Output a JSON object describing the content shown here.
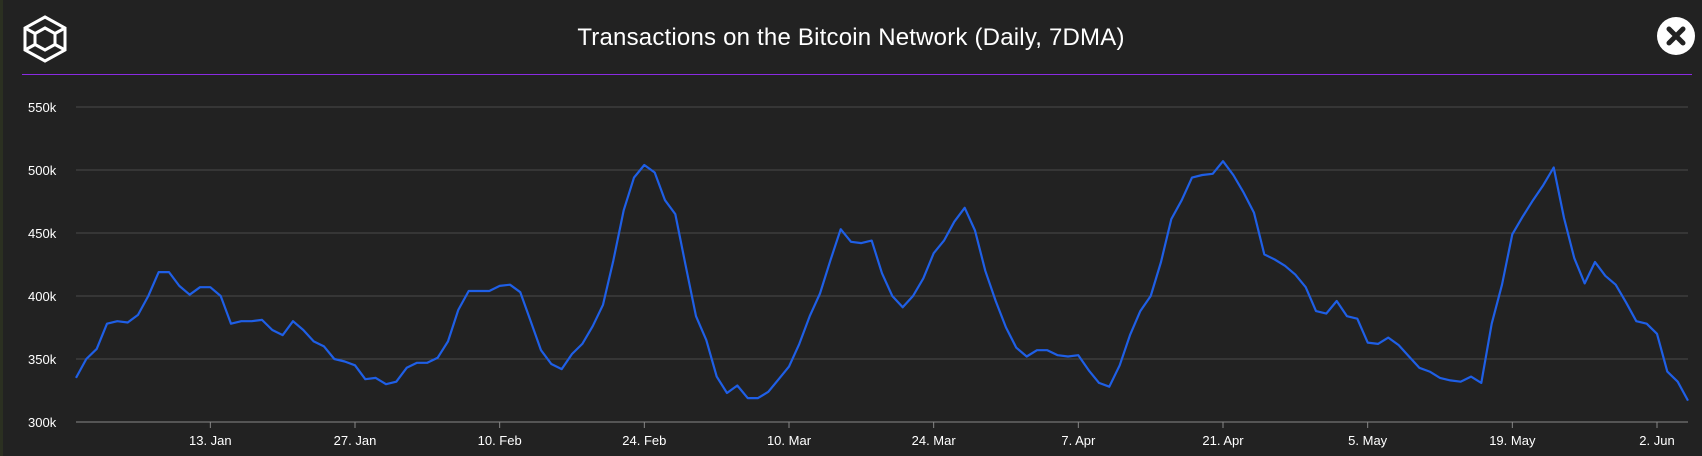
{
  "header": {
    "title": "Transactions on the Bitcoin Network (Daily, 7DMA)",
    "logo_icon": "cube-logo-icon",
    "close_icon": "close-icon"
  },
  "colors": {
    "background": "#222222",
    "line": "#1f5fe6",
    "grid": "#4a4a4a",
    "divider": "#8a2be2",
    "text": "#ffffff"
  },
  "chart_data": {
    "type": "line",
    "title": "Transactions on the Bitcoin Network (Daily, 7DMA)",
    "xlabel": "",
    "ylabel": "",
    "ylim": [
      300000,
      550000
    ],
    "y_ticks": [
      300000,
      350000,
      400000,
      450000,
      500000,
      550000
    ],
    "y_tick_labels": [
      "300k",
      "350k",
      "400k",
      "450k",
      "500k",
      "550k"
    ],
    "x_tick_labels": [
      "13. Jan",
      "27. Jan",
      "10. Feb",
      "24. Feb",
      "10. Mar",
      "24. Mar",
      "7. Apr",
      "21. Apr",
      "5. May",
      "19. May",
      "2. Jun"
    ],
    "x_tick_index": [
      13,
      27,
      41,
      55,
      69,
      83,
      97,
      111,
      125,
      139,
      153
    ],
    "grid": true,
    "legend": "none",
    "series": [
      {
        "values": [
          335000,
          350000,
          358000,
          378000,
          380000,
          379000,
          385000,
          400000,
          419000,
          419000,
          408000,
          401000,
          407000,
          407000,
          400000,
          378000,
          380000,
          380000,
          381000,
          373000,
          369000,
          380000,
          373000,
          364000,
          360000,
          350000,
          348000,
          345000,
          334000,
          335000,
          330000,
          332000,
          343000,
          347000,
          347000,
          351000,
          364000,
          389000,
          404000,
          404000,
          404000,
          408000,
          409000,
          403000,
          380000,
          357000,
          346000,
          342000,
          354000,
          362000,
          376000,
          393000,
          428000,
          468000,
          494000,
          504000,
          498000,
          476000,
          465000,
          424000,
          384000,
          365000,
          336000,
          323000,
          329000,
          319000,
          319000,
          324000,
          334000,
          344000,
          362000,
          384000,
          402000,
          428000,
          453000,
          443000,
          442000,
          444000,
          418000,
          400000,
          391000,
          400000,
          414000,
          434000,
          444000,
          459000,
          470000,
          452000,
          420000,
          396000,
          375000,
          359000,
          352000,
          357000,
          357000,
          353000,
          352000,
          353000,
          341000,
          331000,
          328000,
          345000,
          369000,
          388000,
          400000,
          427000,
          461000,
          476000,
          494000,
          496000,
          497000,
          507000,
          496000,
          482000,
          466000,
          433000,
          429000,
          424000,
          417000,
          407000,
          388000,
          386000,
          396000,
          384000,
          382000,
          363000,
          362000,
          367000,
          361000,
          352000,
          343000,
          340000,
          335000,
          333000,
          332000,
          336000,
          331000,
          378000,
          409000,
          449000,
          463000,
          476000,
          488000,
          502000,
          462000,
          430000,
          410000,
          427000,
          416000,
          409000,
          395000,
          380000,
          378000,
          370000,
          340000,
          332000,
          317000
        ]
      }
    ]
  }
}
